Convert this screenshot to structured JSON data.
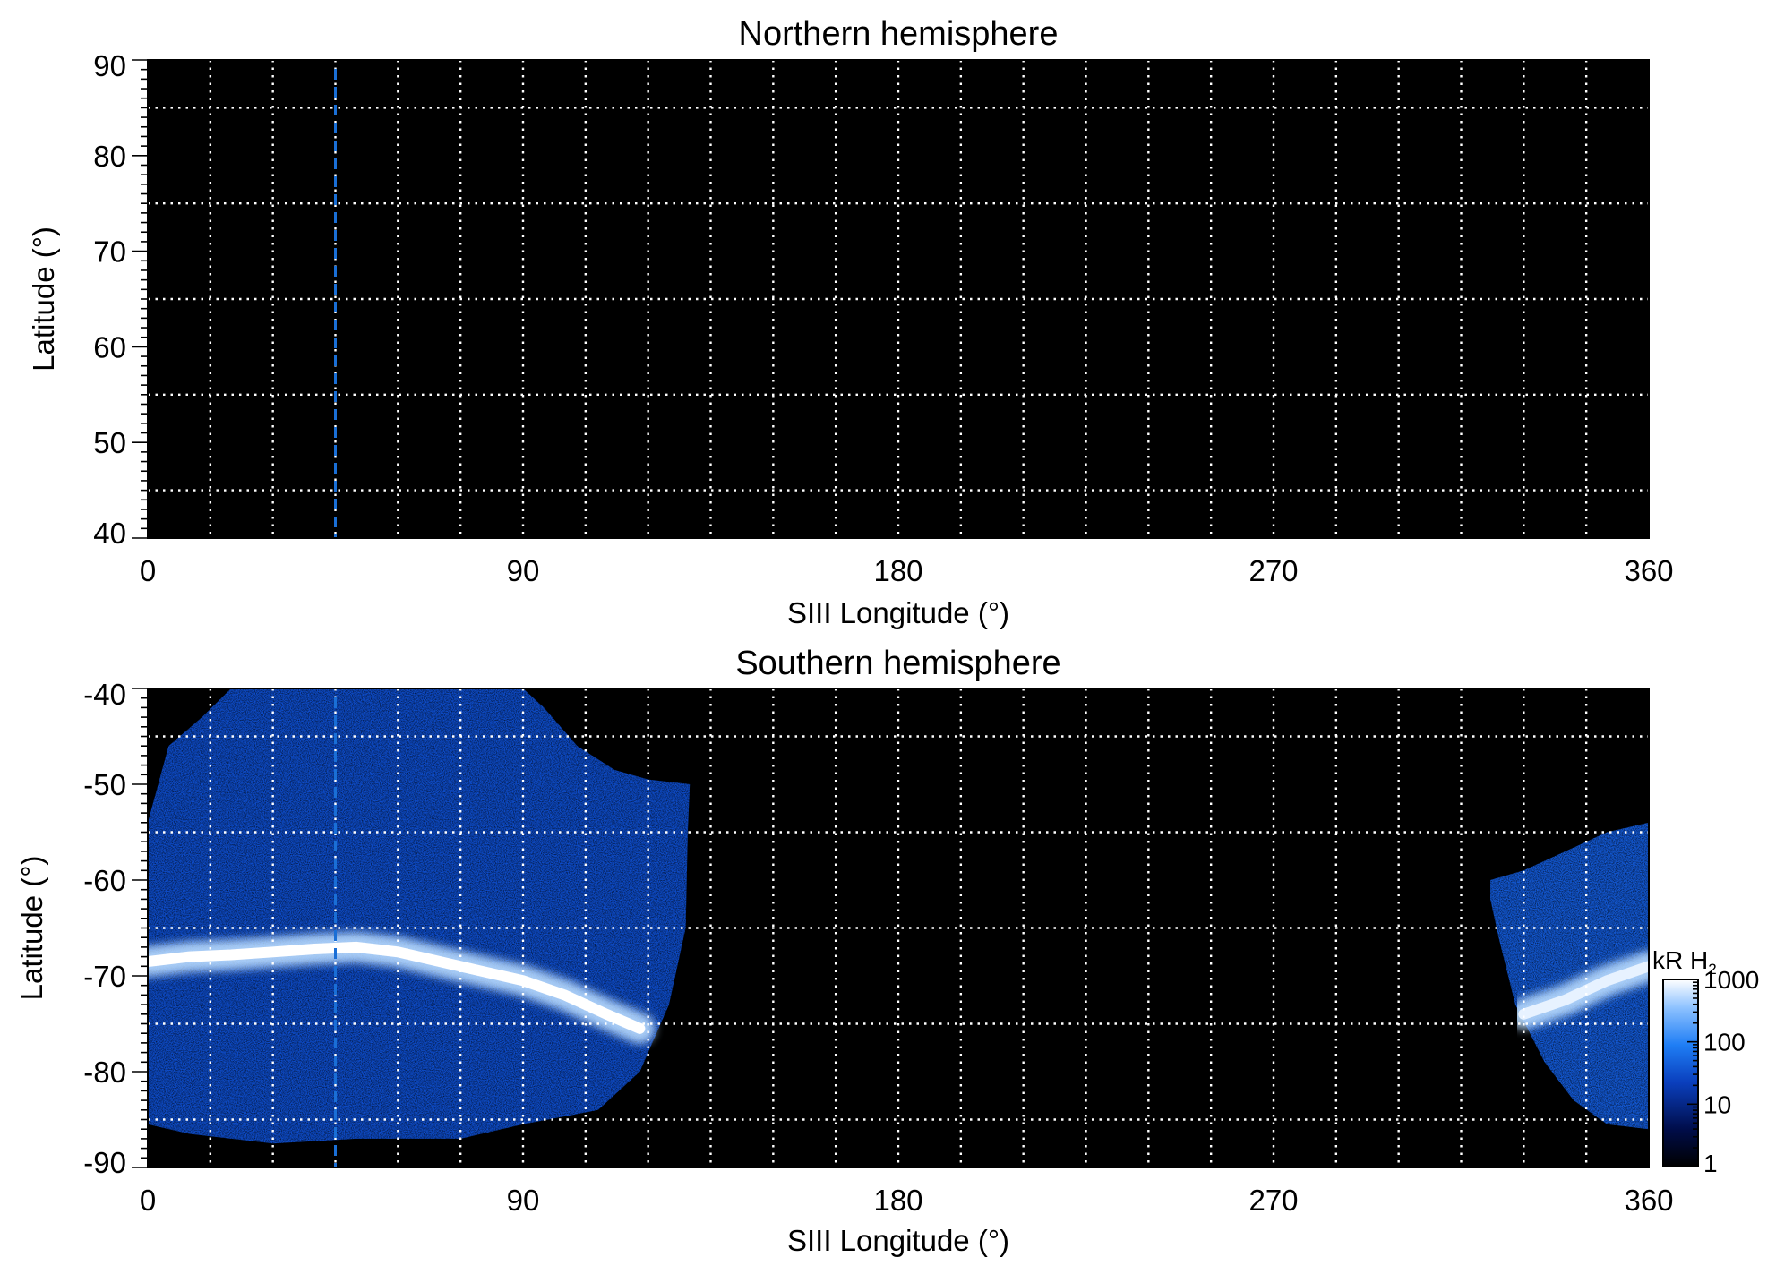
{
  "chart_data": [
    {
      "type": "heatmap",
      "title": "Northern hemisphere",
      "xlabel": "SIII Longitude (°)",
      "ylabel": "Latitude (°)",
      "xlim": [
        0,
        360
      ],
      "ylim": [
        40,
        90
      ],
      "xticks": [
        0,
        90,
        180,
        270,
        360
      ],
      "yticks": [
        40,
        50,
        60,
        70,
        80,
        90
      ],
      "grid": true,
      "grid_x_step": 15,
      "grid_y_step": 10,
      "background": "#000000",
      "emission_regions": [],
      "reference_line": {
        "x": 45,
        "style": "dashed",
        "color": "#1a6fd6"
      }
    },
    {
      "type": "heatmap",
      "title": "Southern hemisphere",
      "xlabel": "SIII Longitude (°)",
      "ylabel": "Latitude (°)",
      "xlim": [
        0,
        360
      ],
      "ylim": [
        -90,
        -40
      ],
      "xticks": [
        0,
        90,
        180,
        270,
        360
      ],
      "yticks": [
        -90,
        -80,
        -70,
        -60,
        -50,
        -40
      ],
      "grid": true,
      "grid_x_step": 15,
      "grid_y_step": 10,
      "background": "#000000",
      "reference_line": {
        "x": 45,
        "style": "dashed",
        "color": "#1a6fd6"
      },
      "emission_regions": [
        {
          "boundary": [
            [
              0,
              -54
            ],
            [
              5,
              -46
            ],
            [
              13,
              -43
            ],
            [
              20,
              -40
            ],
            [
              90,
              -40
            ],
            [
              95,
              -42
            ],
            [
              103,
              -46
            ],
            [
              112,
              -48.5
            ],
            [
              120,
              -49.5
            ],
            [
              130,
              -50
            ],
            [
              129.5,
              -55
            ],
            [
              129,
              -65
            ],
            [
              125,
              -73
            ],
            [
              118,
              -80
            ],
            [
              108,
              -84
            ],
            [
              90,
              -85.5
            ],
            [
              80,
              -86.5
            ],
            [
              75,
              -87
            ],
            [
              60,
              -87
            ],
            [
              50,
              -87
            ],
            [
              30,
              -87.5
            ],
            [
              10,
              -86.5
            ],
            [
              0,
              -85.5
            ]
          ],
          "intensity_kR": 30
        },
        {
          "boundary": [
            [
              322,
              -60
            ],
            [
              330,
              -59
            ],
            [
              340,
              -57
            ],
            [
              350,
              -55
            ],
            [
              360,
              -54
            ],
            [
              360,
              -86
            ],
            [
              350,
              -85.5
            ],
            [
              342,
              -83
            ],
            [
              335,
              -79
            ],
            [
              328,
              -73
            ],
            [
              324,
              -66
            ],
            [
              322,
              -62
            ]
          ],
          "intensity_kR": 40
        }
      ],
      "main_oval": [
        {
          "longitude": [
            0,
            10,
            20,
            30,
            40,
            50,
            60,
            70,
            80,
            90,
            100,
            110,
            118
          ],
          "latitude": [
            -68.5,
            -68,
            -67.8,
            -67.5,
            -67.2,
            -67,
            -67.5,
            -68.5,
            -69.5,
            -70.5,
            -72,
            -74,
            -75.5
          ],
          "intensity_kR": 1000
        },
        {
          "longitude": [
            330,
            340,
            350,
            360
          ],
          "latitude": [
            -74,
            -72.5,
            -70.5,
            -69
          ],
          "intensity_kR": 800
        }
      ]
    }
  ],
  "colorbar": {
    "title": "kR H",
    "title_subscript": "2",
    "scale": "log",
    "range": [
      1,
      1000
    ],
    "ticks": [
      "1",
      "10",
      "100",
      "1000"
    ],
    "tick_values": [
      1,
      10,
      100,
      1000
    ],
    "colors": [
      "#000000",
      "#000d4a",
      "#0a3fbd",
      "#1f7ef5",
      "#8ec2ff",
      "#ffffff"
    ]
  }
}
